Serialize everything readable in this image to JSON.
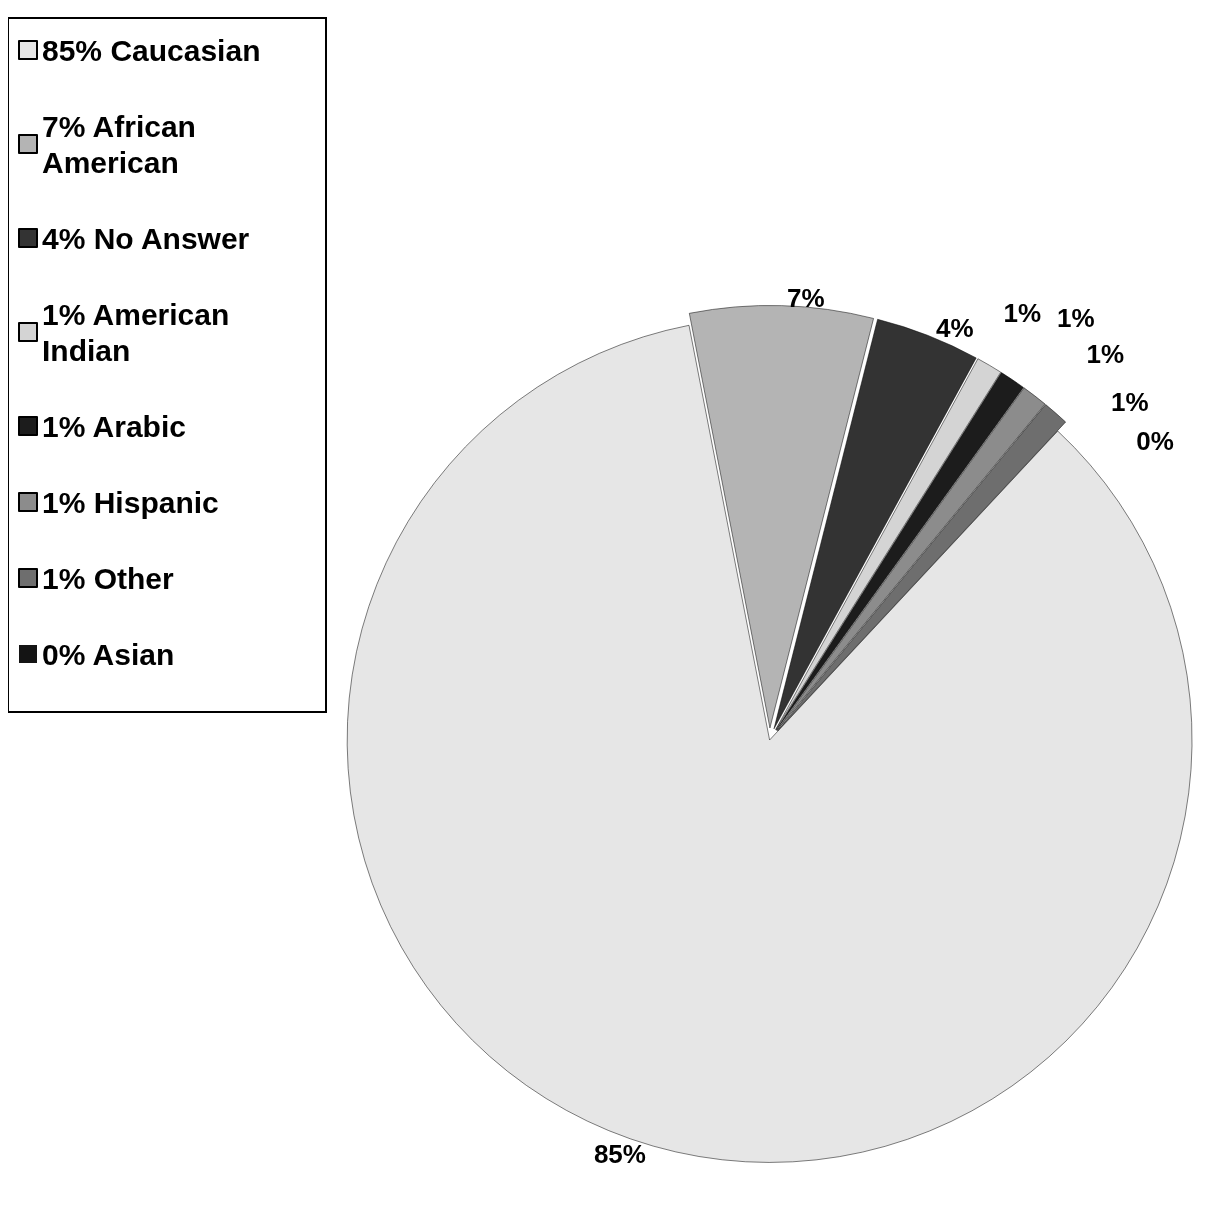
{
  "chart_data": {
    "type": "pie",
    "categories": [
      "85% Caucasian",
      "7% African American",
      "4% No Answer",
      "1% American Indian",
      "1% Arabic",
      "1% Hispanic",
      "1% Other",
      "0% Asian"
    ],
    "values": [
      85,
      7,
      4,
      1,
      1,
      1,
      1,
      0
    ],
    "value_labels": [
      "85%",
      "7%",
      "4%",
      "1%",
      "1%",
      "1%",
      "1%",
      "0%"
    ],
    "colors": [
      "#e6e6e6",
      "#b4b4b4",
      "#333333",
      "#d4d4d4",
      "#1c1c1c",
      "#8c8c8c",
      "#6e6e6e",
      "#141414"
    ],
    "legend": "top left"
  }
}
